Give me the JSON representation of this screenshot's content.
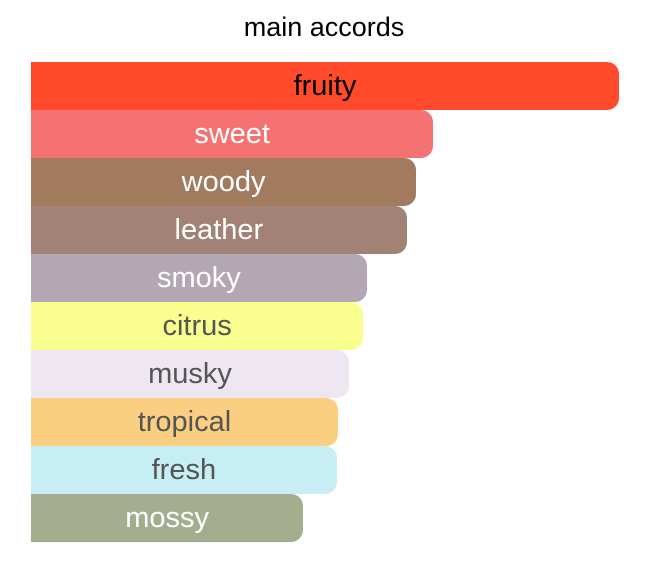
{
  "chart_data": {
    "type": "bar",
    "orientation": "horizontal",
    "title": "main accords",
    "categories": [
      "fruity",
      "sweet",
      "woody",
      "leather",
      "smoky",
      "citrus",
      "musky",
      "tropical",
      "fresh",
      "mossy"
    ],
    "values": [
      100,
      68.4,
      65.5,
      63.9,
      57.1,
      56.5,
      54.1,
      52.2,
      52.0,
      46.3
    ],
    "xlim": [
      0,
      100
    ],
    "grid": false,
    "bar_colors": [
      "#FF4B2B",
      "#F47372",
      "#A27B5F",
      "#A38276",
      "#B2A7B3",
      "#F9FE8E",
      "#EEE6F1",
      "#FBCF82",
      "#C7EEF4",
      "#A5AD8F"
    ],
    "label_colors": [
      "#000000",
      "#FFFFFF",
      "#FFFFFF",
      "#FFFFFF",
      "#FFFFFF",
      "#555555",
      "#555555",
      "#555555",
      "#555555",
      "#FFFFFF"
    ]
  }
}
